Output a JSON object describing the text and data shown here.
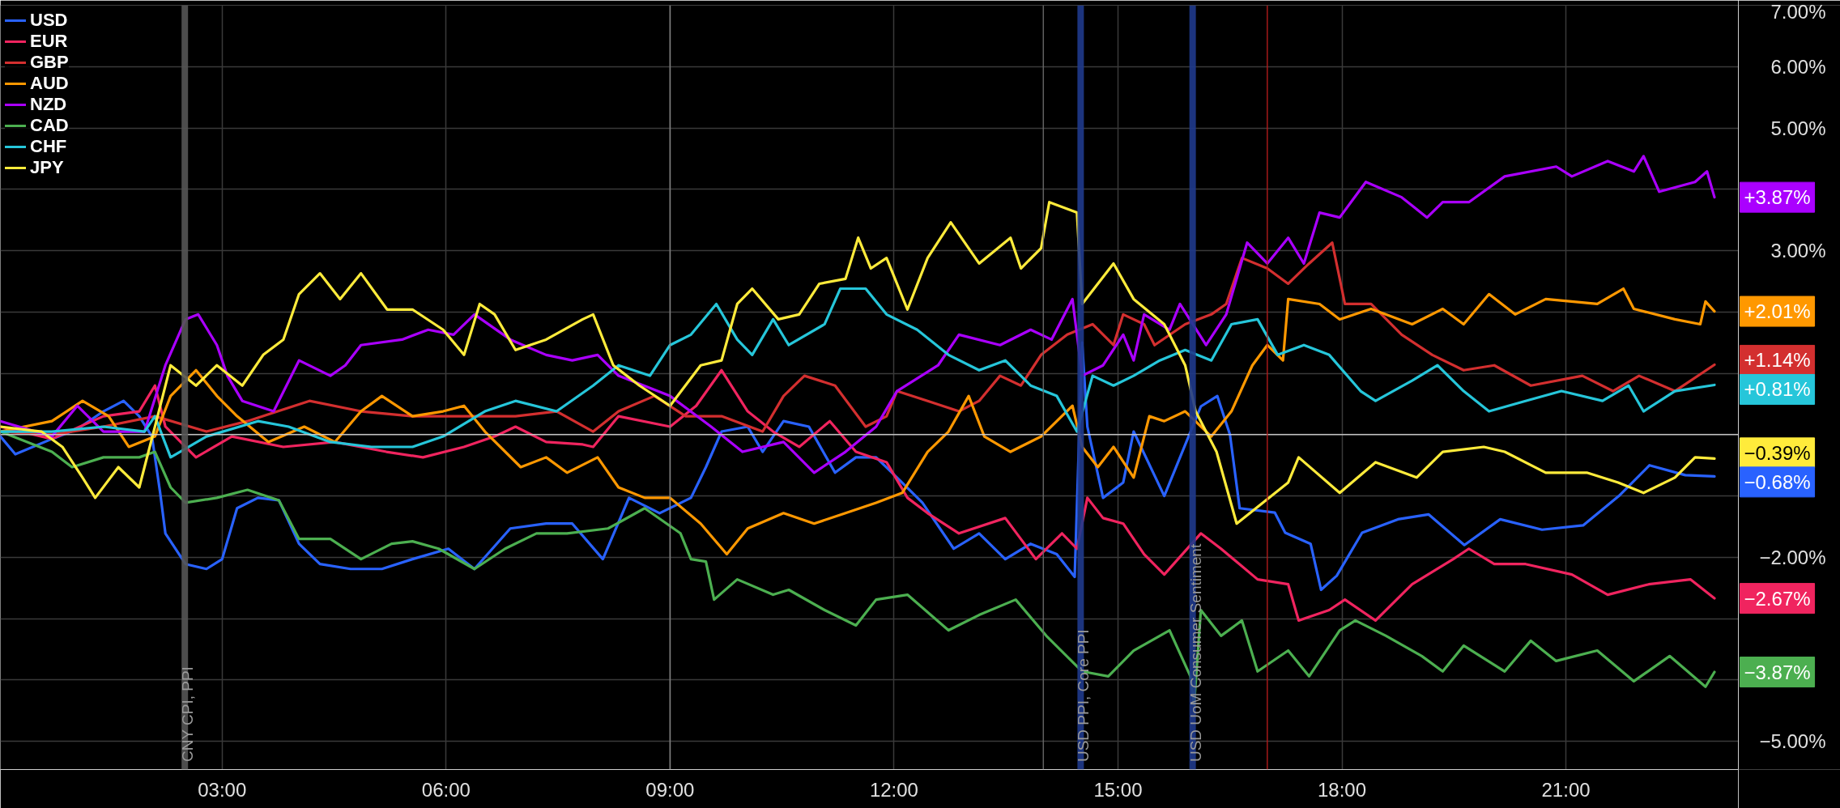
{
  "chart_data": {
    "type": "line",
    "xlim": [
      0.03,
      23.31
    ],
    "ylim": [
      -5.46,
      7.0
    ],
    "xticks": [
      {
        "value": 3,
        "label": "03:00"
      },
      {
        "value": 6,
        "label": "06:00"
      },
      {
        "value": 9,
        "label": "09:00"
      },
      {
        "value": 12,
        "label": "12:00"
      },
      {
        "value": 15,
        "label": "15:00"
      },
      {
        "value": 18,
        "label": "18:00"
      },
      {
        "value": 21,
        "label": "21:00"
      }
    ],
    "yticks": [
      {
        "value": -5,
        "label": "−5.00%"
      },
      {
        "value": -4,
        "label": null
      },
      {
        "value": -3,
        "label": null
      },
      {
        "value": -2,
        "label": "−2.00%"
      },
      {
        "value": -1,
        "label": null
      },
      {
        "value": 0,
        "label": null
      },
      {
        "value": 1,
        "label": null
      },
      {
        "value": 2,
        "label": null
      },
      {
        "value": 3,
        "label": "3.00%"
      },
      {
        "value": 4,
        "label": null
      },
      {
        "value": 5,
        "label": "5.00%"
      },
      {
        "value": 6,
        "label": "6.00%"
      },
      {
        "value": 7,
        "label": "7.00%"
      }
    ],
    "grid": true,
    "legend": "top left",
    "line_style": "solid",
    "ref_lines": [
      {
        "axis": "y",
        "value": 0,
        "color": "#d0d0d0"
      },
      {
        "axis": "x",
        "value": 2.5,
        "label": "CNY CPI, PPI",
        "color": "#555555"
      },
      {
        "axis": "x",
        "value": 9.0,
        "color": "#8a8a8a"
      },
      {
        "axis": "x",
        "value": 14.0,
        "color": "#6a6a6a"
      },
      {
        "axis": "x",
        "value": 14.5,
        "label": "USD PPI, Core PPI",
        "color": "#1f3a8c"
      },
      {
        "axis": "x",
        "value": 16.0,
        "label": "USD UoM Consumer Sentiment",
        "color": "#1f3a8c"
      },
      {
        "axis": "x",
        "value": 17.0,
        "color": "#b71c1c"
      }
    ],
    "series": [
      {
        "name": "USD",
        "color": "#2962ff",
        "x": [
          0.03,
          0.23,
          0.72,
          1.06,
          1.41,
          1.68,
          1.89,
          2.06,
          2.17,
          2.24,
          2.51,
          2.79,
          3.0,
          3.2,
          3.48,
          3.76,
          4.03,
          4.31,
          4.72,
          5.14,
          5.55,
          6.03,
          6.38,
          6.86,
          7.34,
          7.69,
          8.1,
          8.45,
          8.86,
          9.28,
          9.48,
          9.69,
          10.04,
          10.24,
          10.52,
          10.86,
          11.21,
          11.49,
          11.76,
          12.04,
          12.38,
          12.8,
          13.14,
          13.49,
          13.83,
          14.18,
          14.42,
          14.52,
          14.59,
          14.8,
          15.07,
          15.21,
          15.62,
          16.11,
          16.33,
          16.5,
          16.63,
          17.1,
          17.24,
          17.58,
          17.72,
          17.93,
          18.27,
          18.75,
          19.16,
          19.64,
          20.12,
          20.68,
          21.23,
          21.71,
          22.12,
          22.6,
          22.99
        ],
        "values": [
          -0.03,
          -0.32,
          -0.07,
          0.09,
          0.38,
          0.55,
          0.3,
          -0.03,
          -0.95,
          -1.61,
          -2.11,
          -2.19,
          -2.03,
          -1.2,
          -1.03,
          -1.07,
          -1.78,
          -2.11,
          -2.19,
          -2.19,
          -2.03,
          -1.86,
          -2.19,
          -1.53,
          -1.45,
          -1.45,
          -2.03,
          -1.03,
          -1.28,
          -1.03,
          -0.53,
          0.05,
          0.13,
          -0.28,
          0.22,
          0.13,
          -0.62,
          -0.37,
          -0.37,
          -0.7,
          -1.11,
          -1.86,
          -1.61,
          -2.03,
          -1.78,
          -1.95,
          -2.32,
          1.5,
          0.13,
          -1.03,
          -0.78,
          0.05,
          -1.0,
          0.46,
          0.63,
          0.0,
          -1.2,
          -1.27,
          -1.6,
          -1.78,
          -2.53,
          -2.3,
          -1.6,
          -1.38,
          -1.3,
          -1.8,
          -1.38,
          -1.55,
          -1.48,
          -1.0,
          -0.5,
          -0.66,
          -0.68
        ],
        "value_labels": [
          null,
          null,
          null,
          null,
          null,
          null,
          null,
          null,
          null,
          null,
          null,
          null,
          null,
          null,
          null,
          null,
          null,
          null,
          null,
          null,
          null,
          null,
          null,
          null,
          null,
          null,
          null,
          null,
          null,
          null,
          null,
          null,
          null,
          null,
          null,
          null,
          null,
          null,
          null,
          null,
          null,
          null,
          null,
          null,
          null,
          null,
          null,
          null,
          null,
          null,
          null,
          null,
          null,
          null,
          null,
          null,
          null,
          null,
          null,
          null,
          null,
          null,
          null,
          null,
          null,
          null,
          null,
          null,
          null,
          null,
          null,
          null,
          "−0.68%"
        ]
      },
      {
        "name": "EUR",
        "color": "#f0245f",
        "x": [
          0.03,
          0.72,
          1.41,
          1.89,
          2.1,
          2.24,
          2.65,
          3.13,
          3.82,
          4.51,
          5.2,
          5.69,
          6.24,
          6.65,
          6.93,
          7.34,
          7.83,
          7.97,
          8.31,
          9.0,
          9.35,
          9.69,
          10.04,
          10.38,
          10.73,
          11.14,
          11.49,
          11.9,
          12.18,
          12.45,
          12.87,
          13.49,
          13.9,
          14.25,
          14.45,
          14.59,
          14.8,
          15.07,
          15.35,
          15.62,
          16.11,
          16.38,
          16.87,
          17.28,
          17.42,
          17.83,
          18.04,
          18.45,
          18.94,
          19.49,
          19.7,
          20.04,
          20.46,
          21.08,
          21.56,
          22.11,
          22.67,
          22.99
        ],
        "values": [
          0.13,
          -0.07,
          0.3,
          0.38,
          0.8,
          0.13,
          -0.37,
          -0.03,
          -0.2,
          -0.12,
          -0.28,
          -0.37,
          -0.2,
          -0.03,
          0.13,
          -0.12,
          -0.16,
          -0.2,
          0.3,
          0.13,
          0.47,
          1.05,
          0.38,
          0.05,
          -0.2,
          0.22,
          -0.28,
          -0.45,
          -1.03,
          -1.28,
          -1.61,
          -1.36,
          -2.03,
          -1.61,
          -1.86,
          -1.03,
          -1.36,
          -1.45,
          -1.95,
          -2.28,
          -1.61,
          -1.86,
          -2.36,
          -2.44,
          -3.03,
          -2.86,
          -2.69,
          -3.03,
          -2.44,
          -2.03,
          -1.86,
          -2.11,
          -2.11,
          -2.28,
          -2.61,
          -2.44,
          -2.36,
          -2.67
        ],
        "value_labels": [
          null,
          null,
          null,
          null,
          null,
          null,
          null,
          null,
          null,
          null,
          null,
          null,
          null,
          null,
          null,
          null,
          null,
          null,
          null,
          null,
          null,
          null,
          null,
          null,
          null,
          null,
          null,
          null,
          null,
          null,
          null,
          null,
          null,
          null,
          null,
          null,
          null,
          null,
          null,
          null,
          null,
          null,
          null,
          null,
          null,
          null,
          null,
          null,
          null,
          null,
          null,
          null,
          null,
          null,
          null,
          null,
          null,
          "−2.67%"
        ]
      },
      {
        "name": "GBP",
        "color": "#d32f2f",
        "x": [
          0.03,
          0.72,
          1.41,
          2.1,
          2.79,
          3.34,
          4.17,
          4.86,
          5.55,
          6.24,
          6.93,
          7.48,
          7.97,
          8.31,
          8.79,
          9.21,
          9.69,
          10.24,
          10.52,
          10.8,
          11.21,
          11.62,
          11.9,
          12.04,
          12.45,
          12.87,
          13.14,
          13.42,
          13.7,
          13.97,
          14.32,
          14.66,
          14.94,
          15.07,
          15.35,
          15.49,
          15.9,
          16.25,
          16.45,
          16.66,
          17.0,
          17.28,
          17.56,
          17.87,
          18.04,
          18.39,
          18.8,
          19.21,
          19.63,
          20.04,
          20.53,
          21.22,
          21.63,
          21.98,
          22.46,
          22.99
        ],
        "values": [
          0.05,
          0.0,
          0.13,
          0.3,
          0.05,
          0.22,
          0.55,
          0.38,
          0.3,
          0.3,
          0.3,
          0.38,
          0.05,
          0.38,
          0.63,
          0.3,
          0.3,
          0.05,
          0.63,
          0.96,
          0.8,
          0.13,
          0.3,
          0.71,
          0.55,
          0.38,
          0.55,
          0.96,
          0.8,
          1.3,
          1.63,
          1.8,
          1.46,
          1.96,
          1.8,
          1.46,
          1.8,
          1.96,
          2.13,
          2.88,
          2.71,
          2.46,
          2.79,
          3.13,
          2.13,
          2.13,
          1.63,
          1.3,
          1.05,
          1.13,
          0.8,
          0.96,
          0.71,
          0.96,
          0.71,
          1.14
        ],
        "value_labels": [
          null,
          null,
          null,
          null,
          null,
          null,
          null,
          null,
          null,
          null,
          null,
          null,
          null,
          null,
          null,
          null,
          null,
          null,
          null,
          null,
          null,
          null,
          null,
          null,
          null,
          null,
          null,
          null,
          null,
          null,
          null,
          null,
          null,
          null,
          null,
          null,
          null,
          null,
          null,
          null,
          null,
          null,
          null,
          null,
          null,
          null,
          null,
          null,
          null,
          null,
          null,
          null,
          null,
          null,
          null,
          "+1.14%"
        ]
      },
      {
        "name": "AUD",
        "color": "#ff9800",
        "x": [
          0.03,
          0.72,
          1.13,
          1.48,
          1.75,
          2.1,
          2.31,
          2.65,
          2.93,
          3.2,
          3.62,
          4.1,
          4.51,
          4.86,
          5.14,
          5.55,
          5.96,
          6.24,
          6.52,
          7.0,
          7.34,
          7.62,
          8.03,
          8.31,
          8.66,
          9.0,
          9.41,
          9.76,
          10.04,
          10.52,
          10.93,
          11.35,
          11.76,
          12.11,
          12.45,
          12.73,
          13.0,
          13.21,
          13.56,
          13.97,
          14.39,
          14.52,
          14.73,
          14.94,
          15.21,
          15.42,
          15.62,
          15.9,
          16.25,
          16.52,
          16.8,
          17.0,
          17.21,
          17.28,
          17.7,
          17.97,
          18.39,
          18.94,
          19.35,
          19.63,
          19.97,
          20.32,
          20.73,
          21.42,
          21.77,
          21.91,
          22.46,
          22.8,
          22.87,
          22.99
        ],
        "values": [
          0.05,
          0.22,
          0.55,
          0.3,
          -0.2,
          -0.03,
          0.63,
          1.05,
          0.63,
          0.3,
          -0.12,
          0.13,
          -0.12,
          0.38,
          0.63,
          0.3,
          0.38,
          0.47,
          0.05,
          -0.53,
          -0.37,
          -0.62,
          -0.37,
          -0.86,
          -1.03,
          -1.03,
          -1.45,
          -1.95,
          -1.53,
          -1.28,
          -1.45,
          -1.28,
          -1.11,
          -0.95,
          -0.28,
          0.05,
          0.63,
          -0.03,
          -0.28,
          -0.03,
          0.47,
          -0.2,
          -0.53,
          -0.2,
          -0.7,
          0.3,
          0.22,
          0.38,
          -0.03,
          0.38,
          1.13,
          1.46,
          1.21,
          2.21,
          2.13,
          1.88,
          2.05,
          1.8,
          2.05,
          1.8,
          2.29,
          1.96,
          2.21,
          2.13,
          2.38,
          2.05,
          1.88,
          1.8,
          2.17,
          2.01
        ],
        "value_labels": [
          null,
          null,
          null,
          null,
          null,
          null,
          null,
          null,
          null,
          null,
          null,
          null,
          null,
          null,
          null,
          null,
          null,
          null,
          null,
          null,
          null,
          null,
          null,
          null,
          null,
          null,
          null,
          null,
          null,
          null,
          null,
          null,
          null,
          null,
          null,
          null,
          null,
          null,
          null,
          null,
          null,
          null,
          null,
          null,
          null,
          null,
          null,
          null,
          null,
          null,
          null,
          null,
          null,
          null,
          null,
          null,
          null,
          null,
          null,
          null,
          null,
          null,
          null,
          null,
          null,
          null,
          null,
          null,
          null,
          "+2.01%"
        ]
      },
      {
        "name": "NZD",
        "color": "#aa00ff",
        "x": [
          0.03,
          0.72,
          1.06,
          1.41,
          1.96,
          2.24,
          2.51,
          2.68,
          2.93,
          3.07,
          3.27,
          3.69,
          4.03,
          4.45,
          4.65,
          4.86,
          5.41,
          5.76,
          6.1,
          6.38,
          6.86,
          7.34,
          7.69,
          8.03,
          8.31,
          9.0,
          9.55,
          9.97,
          10.52,
          10.93,
          11.35,
          11.76,
          12.04,
          12.59,
          12.87,
          13.42,
          13.83,
          14.11,
          14.39,
          14.52,
          14.8,
          15.07,
          15.21,
          15.35,
          15.69,
          15.83,
          16.18,
          16.45,
          16.73,
          17.0,
          17.28,
          17.49,
          17.7,
          17.97,
          18.32,
          18.8,
          19.14,
          19.35,
          19.7,
          20.18,
          20.87,
          21.08,
          21.56,
          21.91,
          22.04,
          22.25,
          22.73,
          22.89,
          22.99
        ],
        "values": [
          0.22,
          -0.03,
          0.47,
          0.05,
          0.05,
          1.13,
          1.88,
          1.96,
          1.46,
          0.96,
          0.55,
          0.38,
          1.21,
          0.96,
          1.13,
          1.46,
          1.55,
          1.71,
          1.63,
          1.96,
          1.55,
          1.3,
          1.21,
          1.3,
          0.96,
          0.63,
          0.13,
          -0.28,
          -0.12,
          -0.62,
          -0.28,
          0.13,
          0.71,
          1.13,
          1.63,
          1.46,
          1.71,
          1.55,
          2.21,
          0.96,
          1.13,
          1.63,
          1.21,
          1.96,
          1.71,
          2.13,
          1.46,
          1.96,
          3.13,
          2.79,
          3.21,
          2.79,
          3.62,
          3.54,
          4.12,
          3.87,
          3.54,
          3.79,
          3.79,
          4.21,
          4.37,
          4.21,
          4.46,
          4.29,
          4.54,
          3.96,
          4.12,
          4.29,
          3.87
        ],
        "value_labels": [
          null,
          null,
          null,
          null,
          null,
          null,
          null,
          null,
          null,
          null,
          null,
          null,
          null,
          null,
          null,
          null,
          null,
          null,
          null,
          null,
          null,
          null,
          null,
          null,
          null,
          null,
          null,
          null,
          null,
          null,
          null,
          null,
          null,
          null,
          null,
          null,
          null,
          null,
          null,
          null,
          null,
          null,
          null,
          null,
          null,
          null,
          null,
          null,
          null,
          null,
          null,
          null,
          null,
          null,
          null,
          null,
          null,
          null,
          null,
          null,
          null,
          null,
          null,
          null,
          null,
          null,
          null,
          null,
          "+3.87%"
        ]
      },
      {
        "name": "CAD",
        "color": "#4caf50",
        "x": [
          0.03,
          0.72,
          0.99,
          1.41,
          1.89,
          2.1,
          2.31,
          2.51,
          2.93,
          3.34,
          3.76,
          4.03,
          4.45,
          4.86,
          5.27,
          5.55,
          5.9,
          6.38,
          6.79,
          7.21,
          7.62,
          8.17,
          8.66,
          9.14,
          9.28,
          9.48,
          9.59,
          9.9,
          10.38,
          10.59,
          11.07,
          11.49,
          11.76,
          12.18,
          12.73,
          13.14,
          13.63,
          14.04,
          14.52,
          14.87,
          15.21,
          15.69,
          15.97,
          16.02,
          16.11,
          16.38,
          16.66,
          16.87,
          17.28,
          17.56,
          17.97,
          18.18,
          18.59,
          19.07,
          19.35,
          19.63,
          20.18,
          20.53,
          20.87,
          21.42,
          21.91,
          22.39,
          22.87,
          22.99
        ],
        "values": [
          0.05,
          -0.28,
          -0.53,
          -0.37,
          -0.37,
          -0.28,
          -0.86,
          -1.11,
          -1.03,
          -0.9,
          -1.07,
          -1.7,
          -1.7,
          -2.03,
          -1.78,
          -1.74,
          -1.86,
          -2.19,
          -1.86,
          -1.61,
          -1.61,
          -1.53,
          -1.2,
          -1.61,
          -2.03,
          -2.07,
          -2.69,
          -2.36,
          -2.61,
          -2.53,
          -2.86,
          -3.11,
          -2.69,
          -2.61,
          -3.19,
          -2.94,
          -2.69,
          -3.28,
          -3.86,
          -3.94,
          -3.52,
          -3.19,
          -3.94,
          -4.4,
          -2.86,
          -3.28,
          -3.03,
          -3.86,
          -3.52,
          -3.94,
          -3.19,
          -3.03,
          -3.28,
          -3.61,
          -3.86,
          -3.44,
          -3.86,
          -3.36,
          -3.69,
          -3.52,
          -4.02,
          -3.61,
          -4.11,
          -3.87
        ],
        "value_labels": [
          null,
          null,
          null,
          null,
          null,
          null,
          null,
          null,
          null,
          null,
          null,
          null,
          null,
          null,
          null,
          null,
          null,
          null,
          null,
          null,
          null,
          null,
          null,
          null,
          null,
          null,
          null,
          null,
          null,
          null,
          null,
          null,
          null,
          null,
          null,
          null,
          null,
          null,
          null,
          null,
          null,
          null,
          null,
          null,
          null,
          null,
          null,
          null,
          null,
          null,
          null,
          null,
          null,
          null,
          null,
          null,
          null,
          null,
          null,
          null,
          null,
          null,
          null,
          "−3.87%"
        ]
      },
      {
        "name": "CHF",
        "color": "#26c6da",
        "x": [
          0.03,
          0.72,
          1.41,
          1.96,
          2.1,
          2.31,
          2.79,
          3.48,
          3.89,
          4.45,
          5.0,
          5.55,
          5.96,
          6.52,
          6.93,
          7.48,
          7.97,
          8.31,
          8.73,
          9.0,
          9.28,
          9.62,
          9.9,
          10.1,
          10.38,
          10.59,
          11.07,
          11.28,
          11.62,
          11.9,
          12.31,
          12.73,
          13.14,
          13.49,
          13.83,
          14.18,
          14.45,
          14.66,
          14.94,
          15.21,
          15.56,
          15.9,
          16.25,
          16.52,
          16.87,
          17.14,
          17.49,
          17.83,
          18.25,
          18.45,
          18.94,
          19.28,
          19.63,
          19.97,
          20.46,
          20.94,
          21.49,
          21.84,
          22.04,
          22.46,
          22.99
        ],
        "values": [
          0.05,
          0.05,
          0.13,
          0.05,
          0.3,
          -0.37,
          -0.03,
          0.22,
          0.13,
          -0.12,
          -0.2,
          -0.2,
          -0.03,
          0.38,
          0.55,
          0.38,
          0.8,
          1.13,
          0.96,
          1.46,
          1.63,
          2.13,
          1.55,
          1.3,
          1.88,
          1.46,
          1.8,
          2.38,
          2.38,
          1.96,
          1.71,
          1.3,
          1.05,
          1.21,
          0.8,
          0.63,
          0.05,
          0.96,
          0.8,
          0.96,
          1.21,
          1.38,
          1.21,
          1.8,
          1.88,
          1.3,
          1.46,
          1.3,
          0.71,
          0.55,
          0.88,
          1.13,
          0.71,
          0.38,
          0.55,
          0.71,
          0.55,
          0.8,
          0.38,
          0.71,
          0.81
        ],
        "value_labels": [
          null,
          null,
          null,
          null,
          null,
          null,
          null,
          null,
          null,
          null,
          null,
          null,
          null,
          null,
          null,
          null,
          null,
          null,
          null,
          null,
          null,
          null,
          null,
          null,
          null,
          null,
          null,
          null,
          null,
          null,
          null,
          null,
          null,
          null,
          null,
          null,
          null,
          null,
          null,
          null,
          null,
          null,
          null,
          null,
          null,
          null,
          null,
          null,
          null,
          null,
          null,
          null,
          null,
          null,
          null,
          null,
          null,
          null,
          null,
          null,
          "+0.81%"
        ]
      },
      {
        "name": "JPY",
        "color": "#ffeb3b",
        "x": [
          0.03,
          0.58,
          0.86,
          1.13,
          1.3,
          1.61,
          1.89,
          2.1,
          2.31,
          2.65,
          2.93,
          3.27,
          3.55,
          3.82,
          4.03,
          4.31,
          4.58,
          4.86,
          5.21,
          5.55,
          5.96,
          6.24,
          6.45,
          6.65,
          6.93,
          7.34,
          7.83,
          7.97,
          8.24,
          8.59,
          9.0,
          9.41,
          9.69,
          9.9,
          10.1,
          10.45,
          10.73,
          11.0,
          11.35,
          11.52,
          11.69,
          11.9,
          12.18,
          12.45,
          12.76,
          13.14,
          13.56,
          13.7,
          13.97,
          14.08,
          14.45,
          14.52,
          14.94,
          15.21,
          15.62,
          15.9,
          16.04,
          16.32,
          16.59,
          16.94,
          17.28,
          17.42,
          17.97,
          18.45,
          19.0,
          19.35,
          19.9,
          20.18,
          20.73,
          21.28,
          21.7,
          22.04,
          22.46,
          22.73,
          22.99
        ],
        "values": [
          0.13,
          0.05,
          -0.2,
          -0.7,
          -1.03,
          -0.53,
          -0.86,
          0.13,
          1.13,
          0.8,
          1.13,
          0.8,
          1.3,
          1.55,
          2.29,
          2.63,
          2.21,
          2.63,
          2.04,
          2.04,
          1.71,
          1.3,
          2.13,
          1.96,
          1.38,
          1.55,
          1.88,
          1.96,
          1.13,
          0.8,
          0.47,
          1.13,
          1.21,
          2.13,
          2.38,
          1.88,
          1.96,
          2.46,
          2.54,
          3.21,
          2.71,
          2.88,
          2.04,
          2.88,
          3.46,
          2.79,
          3.21,
          2.71,
          3.04,
          3.79,
          3.62,
          2.13,
          2.79,
          2.21,
          1.8,
          1.13,
          0.38,
          -0.28,
          -1.45,
          -1.11,
          -0.78,
          -0.37,
          -0.95,
          -0.45,
          -0.7,
          -0.28,
          -0.2,
          -0.28,
          -0.62,
          -0.62,
          -0.78,
          -0.95,
          -0.7,
          -0.37,
          -0.39
        ],
        "value_labels": [
          null,
          null,
          null,
          null,
          null,
          null,
          null,
          null,
          null,
          null,
          null,
          null,
          null,
          null,
          null,
          null,
          null,
          null,
          null,
          null,
          null,
          null,
          null,
          null,
          null,
          null,
          null,
          null,
          null,
          null,
          null,
          null,
          null,
          null,
          null,
          null,
          null,
          null,
          null,
          null,
          null,
          null,
          null,
          null,
          null,
          null,
          null,
          null,
          null,
          null,
          null,
          null,
          null,
          null,
          null,
          null,
          null,
          null,
          null,
          null,
          null,
          null,
          null,
          null,
          null,
          null,
          null,
          null,
          null,
          null,
          null,
          null,
          null,
          null,
          "−0.39%"
        ]
      }
    ]
  }
}
